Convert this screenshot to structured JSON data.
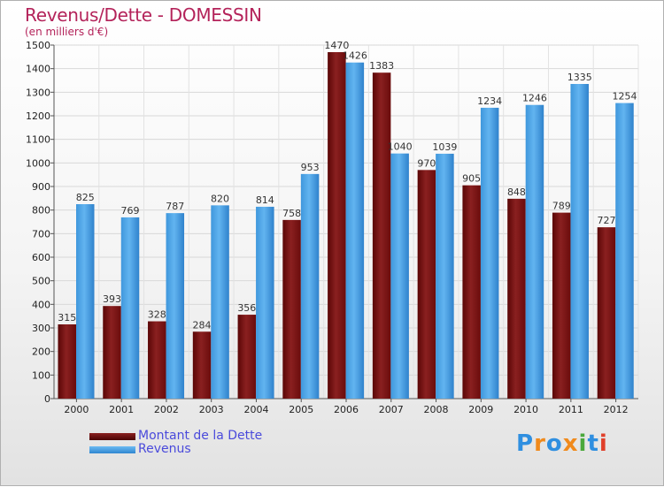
{
  "header": {
    "title": "Revenus/Dette - DOMESSIN",
    "subtitle": "(en milliers d'€)"
  },
  "legend": {
    "items": [
      {
        "label": "Montant de la Dette",
        "color": "#7a1010"
      },
      {
        "label": "Revenus",
        "color": "#4aa3e6"
      }
    ]
  },
  "logo": {
    "letters": [
      "P",
      "r",
      "o",
      "x",
      "i",
      "t",
      "i"
    ],
    "colors": [
      "#2f8fe0",
      "#f08a1c",
      "#2f8fe0",
      "#f08a1c",
      "#4aa83b",
      "#2f8fe0",
      "#e0402a"
    ]
  },
  "chart_data": {
    "type": "bar",
    "title": "Revenus/Dette - DOMESSIN",
    "ylabel": "(en milliers d'€)",
    "categories": [
      "2000",
      "2001",
      "2002",
      "2003",
      "2004",
      "2005",
      "2006",
      "2007",
      "2008",
      "2009",
      "2010",
      "2011",
      "2012"
    ],
    "series": [
      {
        "name": "Montant de la Dette",
        "color": "#7a1010",
        "values": [
          315,
          393,
          328,
          284,
          356,
          758,
          1470,
          1383,
          970,
          905,
          848,
          789,
          727
        ]
      },
      {
        "name": "Revenus",
        "color": "#4aa3e6",
        "values": [
          825,
          769,
          787,
          820,
          814,
          953,
          1426,
          1040,
          1039,
          1234,
          1246,
          1335,
          1254
        ]
      }
    ],
    "ylim": [
      0,
      1500
    ],
    "yticks": [
      0,
      100,
      200,
      300,
      400,
      500,
      600,
      700,
      800,
      900,
      1000,
      1100,
      1200,
      1300,
      1400,
      1500
    ],
    "grid": true,
    "legend_position": "bottom-left"
  }
}
